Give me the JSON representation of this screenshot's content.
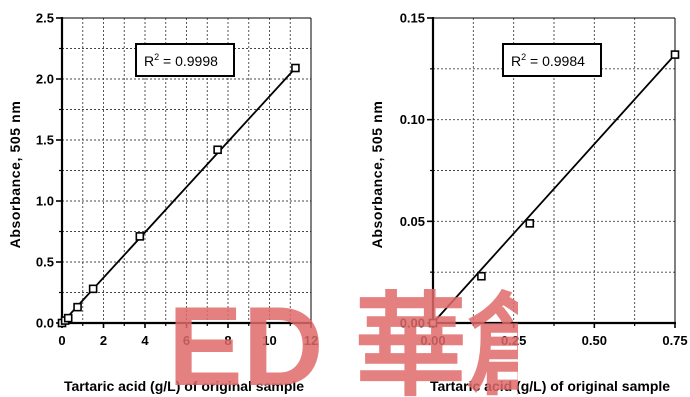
{
  "chart_data": [
    {
      "type": "scatter",
      "title": "",
      "xlabel": "Tartaric acid (g/L) of original sample",
      "ylabel": "Absorbance, 505 nm",
      "xlim": [
        0,
        12
      ],
      "ylim": [
        0,
        2.5
      ],
      "x_ticks": [
        "0",
        "2",
        "4",
        "6",
        "8",
        "10",
        "12"
      ],
      "y_ticks": [
        "0.0",
        "0.5",
        "1.0",
        "1.5",
        "2.0",
        "2.5"
      ],
      "grid": true,
      "marker": "open-square",
      "points": [
        {
          "x": 0.0,
          "y": 0.0
        },
        {
          "x": 0.15,
          "y": 0.02
        },
        {
          "x": 0.3,
          "y": 0.04
        },
        {
          "x": 0.75,
          "y": 0.13
        },
        {
          "x": 1.5,
          "y": 0.28
        },
        {
          "x": 3.75,
          "y": 0.71
        },
        {
          "x": 7.5,
          "y": 1.42
        },
        {
          "x": 11.25,
          "y": 2.09
        }
      ],
      "fit_line": {
        "x": [
          0,
          11.25
        ],
        "y": [
          0.0,
          2.09
        ]
      },
      "annotation": {
        "label": "R",
        "superscript": "2",
        "value": " = 0.9998"
      }
    },
    {
      "type": "scatter",
      "title": "",
      "xlabel": "Tartaric acid (g/L) of original sample",
      "ylabel": "Absorbance, 505 nm",
      "xlim": [
        0,
        0.75
      ],
      "ylim": [
        0,
        0.15
      ],
      "x_ticks": [
        "0.00",
        "0.25",
        "0.50",
        "0.75"
      ],
      "y_ticks": [
        "0.00",
        "0.05",
        "0.10",
        "0.15"
      ],
      "grid": true,
      "marker": "open-square",
      "points": [
        {
          "x": 0.0,
          "y": 0.0
        },
        {
          "x": 0.15,
          "y": 0.023
        },
        {
          "x": 0.3,
          "y": 0.049
        },
        {
          "x": 0.75,
          "y": 0.132
        }
      ],
      "fit_line": {
        "x": [
          0,
          0.75
        ],
        "y": [
          0.0,
          0.132
        ]
      },
      "annotation": {
        "label": "R",
        "superscript": "2",
        "value": " = 0.9984"
      }
    }
  ],
  "watermark": {
    "text": "ED 華創",
    "color": "#e06a6a"
  }
}
